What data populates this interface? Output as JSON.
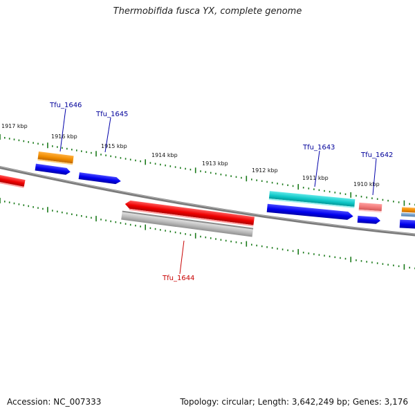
{
  "title": "Thermobifida fusca YX, complete genome",
  "footer": {
    "accession": "Accession: NC_007333",
    "topology": "Topology: circular; Length: 3,642,249 bp; Genes: 3,176"
  },
  "kbp_labels": [
    "1917 kbp",
    "1916 kbp",
    "1915 kbp",
    "1914 kbp",
    "1913 kbp",
    "1912 kbp",
    "1911 kbp",
    "1910 kbp"
  ],
  "gene_labels": [
    "Tfu_1646",
    "Tfu_1645",
    "Tfu_1643",
    "Tfu_1642",
    "Tfu_1644"
  ],
  "colors": {
    "forward_cds": "#0000ee",
    "reverse_cds": "#ee0000",
    "forward_label": "#00009a",
    "reverse_label": "#c80000",
    "orange_feature": "#f08c00",
    "cyan_feature": "#10c8c8",
    "pink_feature": "#f07878",
    "gray_feature": "#b8b8b8",
    "backbone": "#808080",
    "ticks": "#1a7a1a"
  }
}
